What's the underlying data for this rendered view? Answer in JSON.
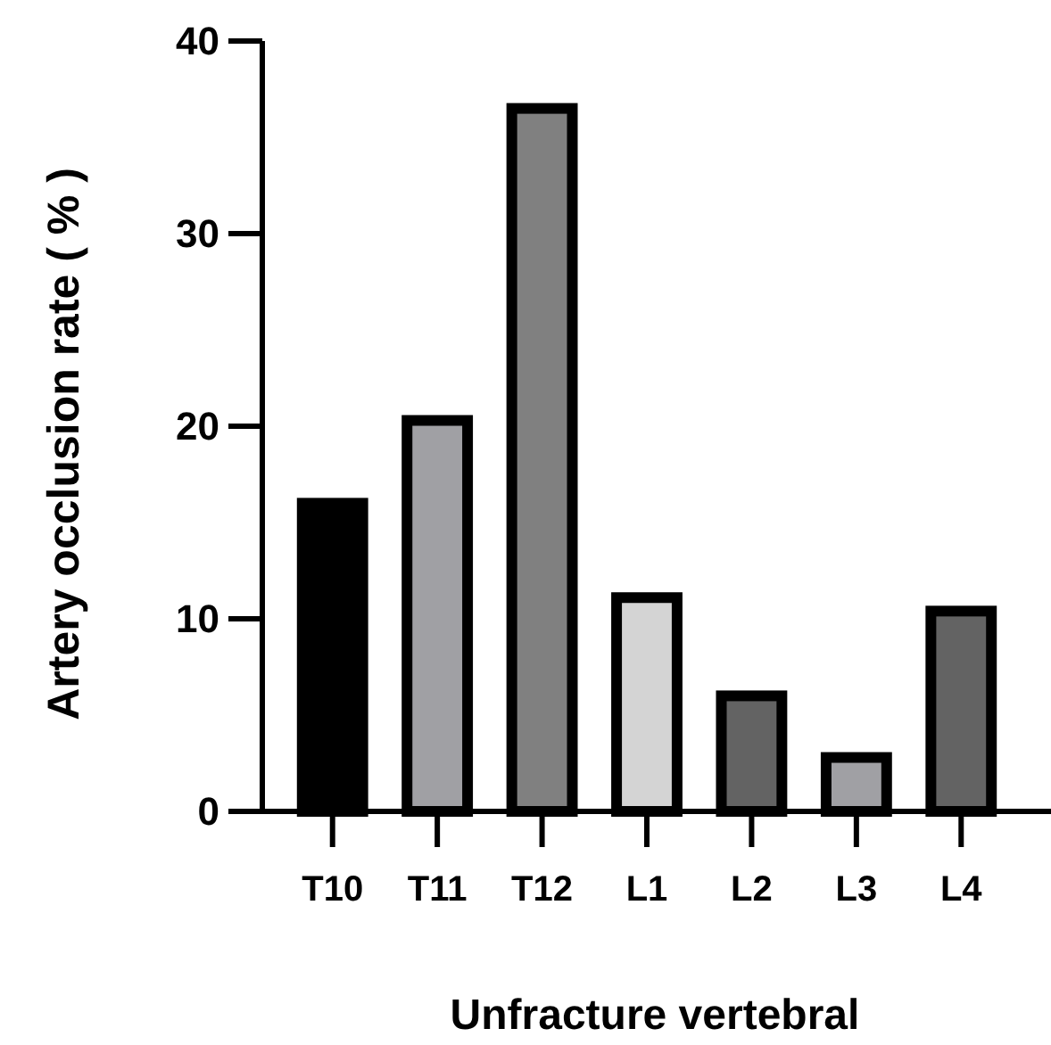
{
  "chart_data": {
    "type": "bar",
    "xlabel": "Unfracture vertebral",
    "ylabel": "Artery occlusion rate ( % )",
    "categories": [
      "T10",
      "T11",
      "T12",
      "L1",
      "L2",
      "L3",
      "L4"
    ],
    "values": [
      16.0,
      20.3,
      36.5,
      11.1,
      6.0,
      2.8,
      10.4
    ],
    "colors": [
      "#000000",
      "#a0a0a4",
      "#808080",
      "#d4d4d4",
      "#636363",
      "#a0a0a4",
      "#636363"
    ],
    "ylim": [
      0,
      40
    ],
    "yticks": [
      0,
      10,
      20,
      30,
      40
    ],
    "grid": false
  }
}
